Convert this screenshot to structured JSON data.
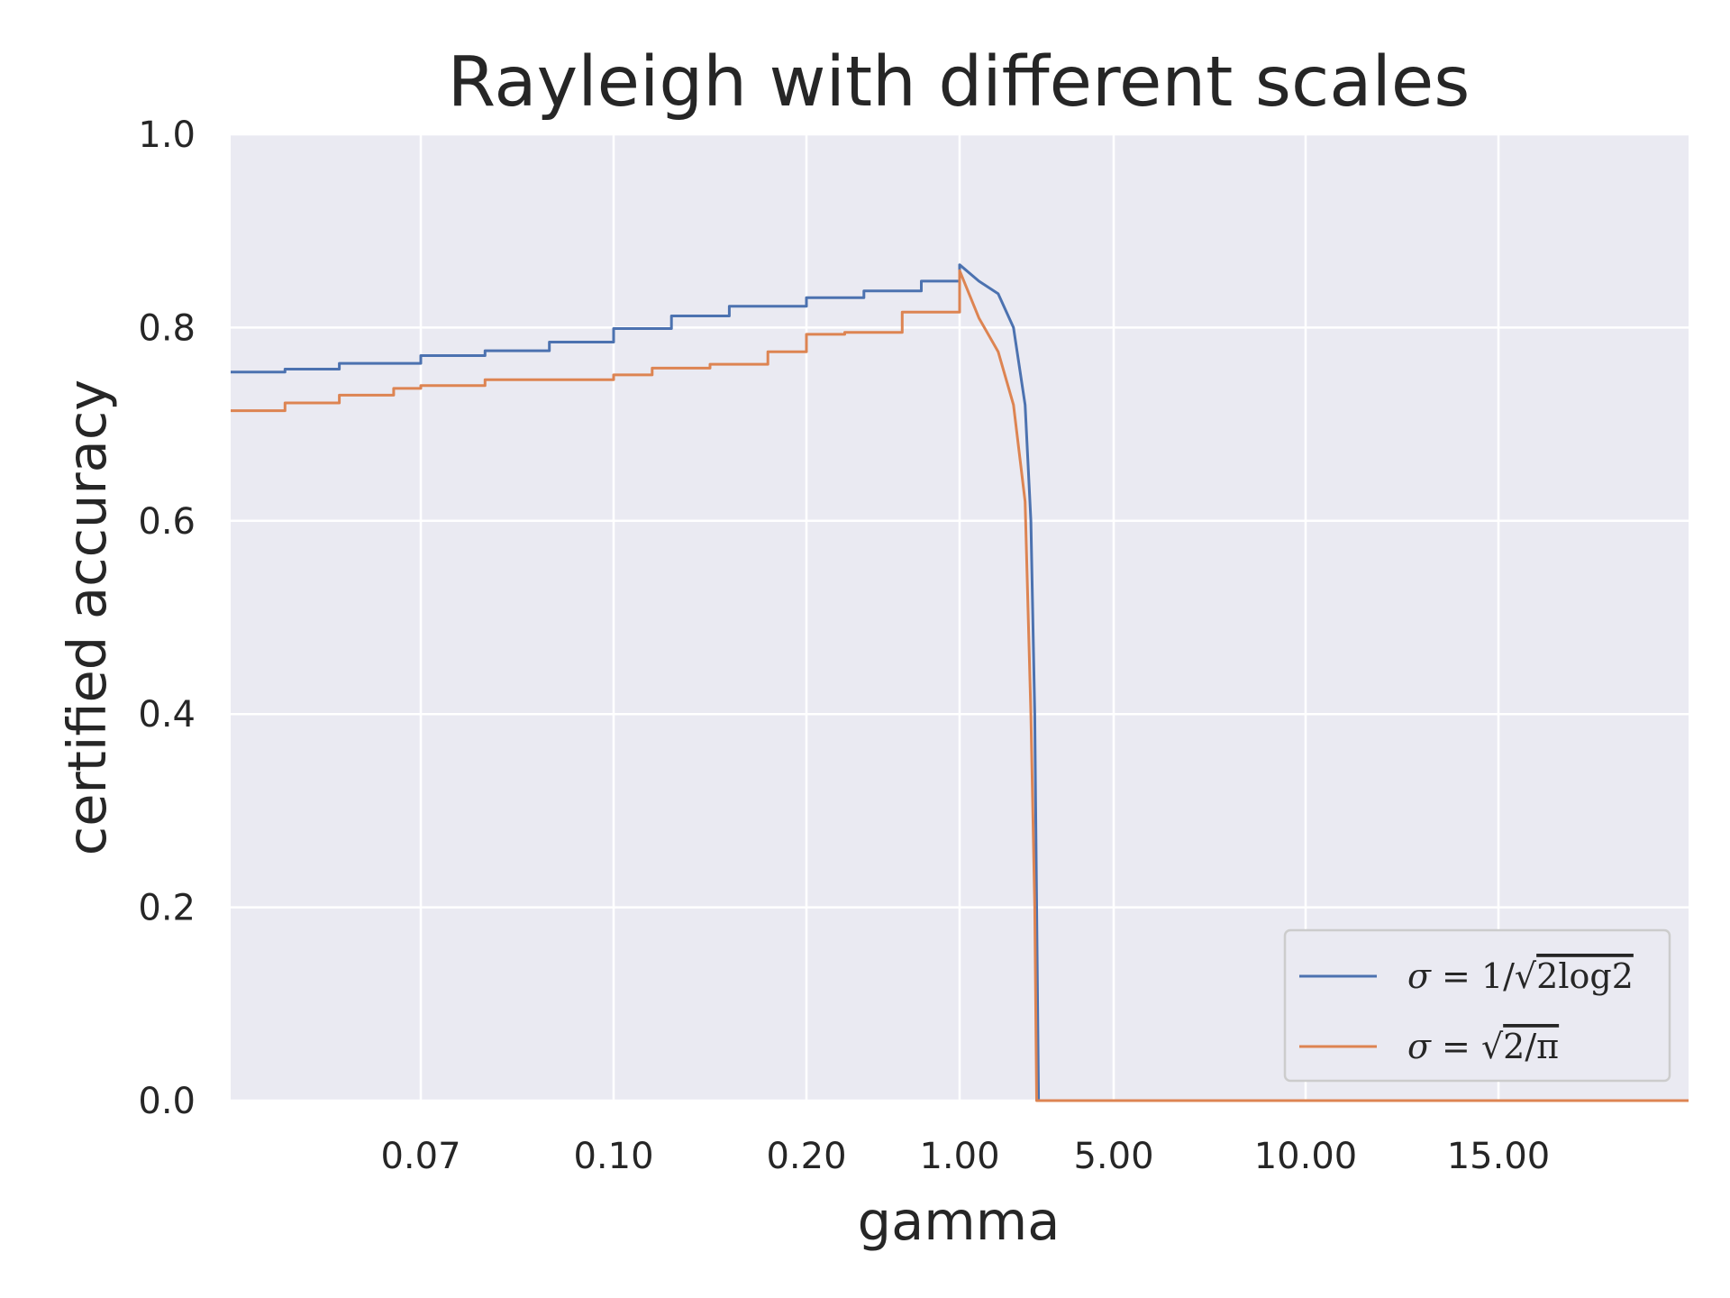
{
  "chart_data": {
    "type": "line",
    "title": "Rayleigh with different scales",
    "xlabel": "gamma",
    "ylabel": "certified accuracy",
    "x_scale": "categorical-spaced ticks",
    "x_ticks": [
      "0.07",
      "0.10",
      "0.20",
      "1.00",
      "5.00",
      "10.00",
      "15.00"
    ],
    "y_ticks": [
      "0.0",
      "0.2",
      "0.4",
      "0.6",
      "0.8",
      "1.0"
    ],
    "ylim": [
      0,
      1
    ],
    "grid": true,
    "legend_position": "lower-right",
    "colors": {
      "background": "#eaeaf2",
      "grid": "#ffffff",
      "series1": "#4c72b0",
      "series2": "#dd8452"
    },
    "series": [
      {
        "name": "σ = 1/√2log2",
        "color": "#4c72b0",
        "points": [
          [
            "0.00",
            0.754
          ],
          [
            "0.02",
            0.757
          ],
          [
            "0.04",
            0.763
          ],
          [
            "0.07",
            0.771
          ],
          [
            "0.08",
            0.776
          ],
          [
            "0.09",
            0.785
          ],
          [
            "0.10",
            0.799
          ],
          [
            "0.13",
            0.812
          ],
          [
            "0.16",
            0.822
          ],
          [
            "0.20",
            0.831
          ],
          [
            "0.50",
            0.838
          ],
          [
            "0.80",
            0.848
          ],
          [
            "1.00",
            0.865
          ],
          [
            "1.50",
            0.848
          ],
          [
            "2.00",
            0.835
          ],
          [
            "2.40",
            0.8
          ],
          [
            "2.70",
            0.72
          ],
          [
            "2.85",
            0.6
          ],
          [
            "2.95",
            0.4
          ],
          [
            "3.00",
            0.2
          ],
          [
            "3.05",
            0.0
          ],
          [
            "20.00",
            0.0
          ]
        ]
      },
      {
        "name": "σ = √2/π",
        "color": "#dd8452",
        "points": [
          [
            "0.00",
            0.714
          ],
          [
            "0.02",
            0.722
          ],
          [
            "0.04",
            0.73
          ],
          [
            "0.06",
            0.737
          ],
          [
            "0.07",
            0.74
          ],
          [
            "0.08",
            0.746
          ],
          [
            "0.10",
            0.751
          ],
          [
            "0.12",
            0.758
          ],
          [
            "0.15",
            0.762
          ],
          [
            "0.18",
            0.775
          ],
          [
            "0.20",
            0.793
          ],
          [
            "0.40",
            0.795
          ],
          [
            "0.70",
            0.816
          ],
          [
            "1.00",
            0.859
          ],
          [
            "1.50",
            0.81
          ],
          [
            "2.00",
            0.775
          ],
          [
            "2.40",
            0.72
          ],
          [
            "2.70",
            0.62
          ],
          [
            "2.85",
            0.4
          ],
          [
            "2.95",
            0.2
          ],
          [
            "3.00",
            0.0
          ],
          [
            "20.00",
            0.0
          ]
        ]
      }
    ]
  },
  "legend": {
    "series1_label": {
      "sym": "σ",
      "eq": " = 1/√",
      "rad": "2log2"
    },
    "series2_label": {
      "sym": "σ",
      "eq": " = √",
      "rad": "2/π"
    }
  }
}
